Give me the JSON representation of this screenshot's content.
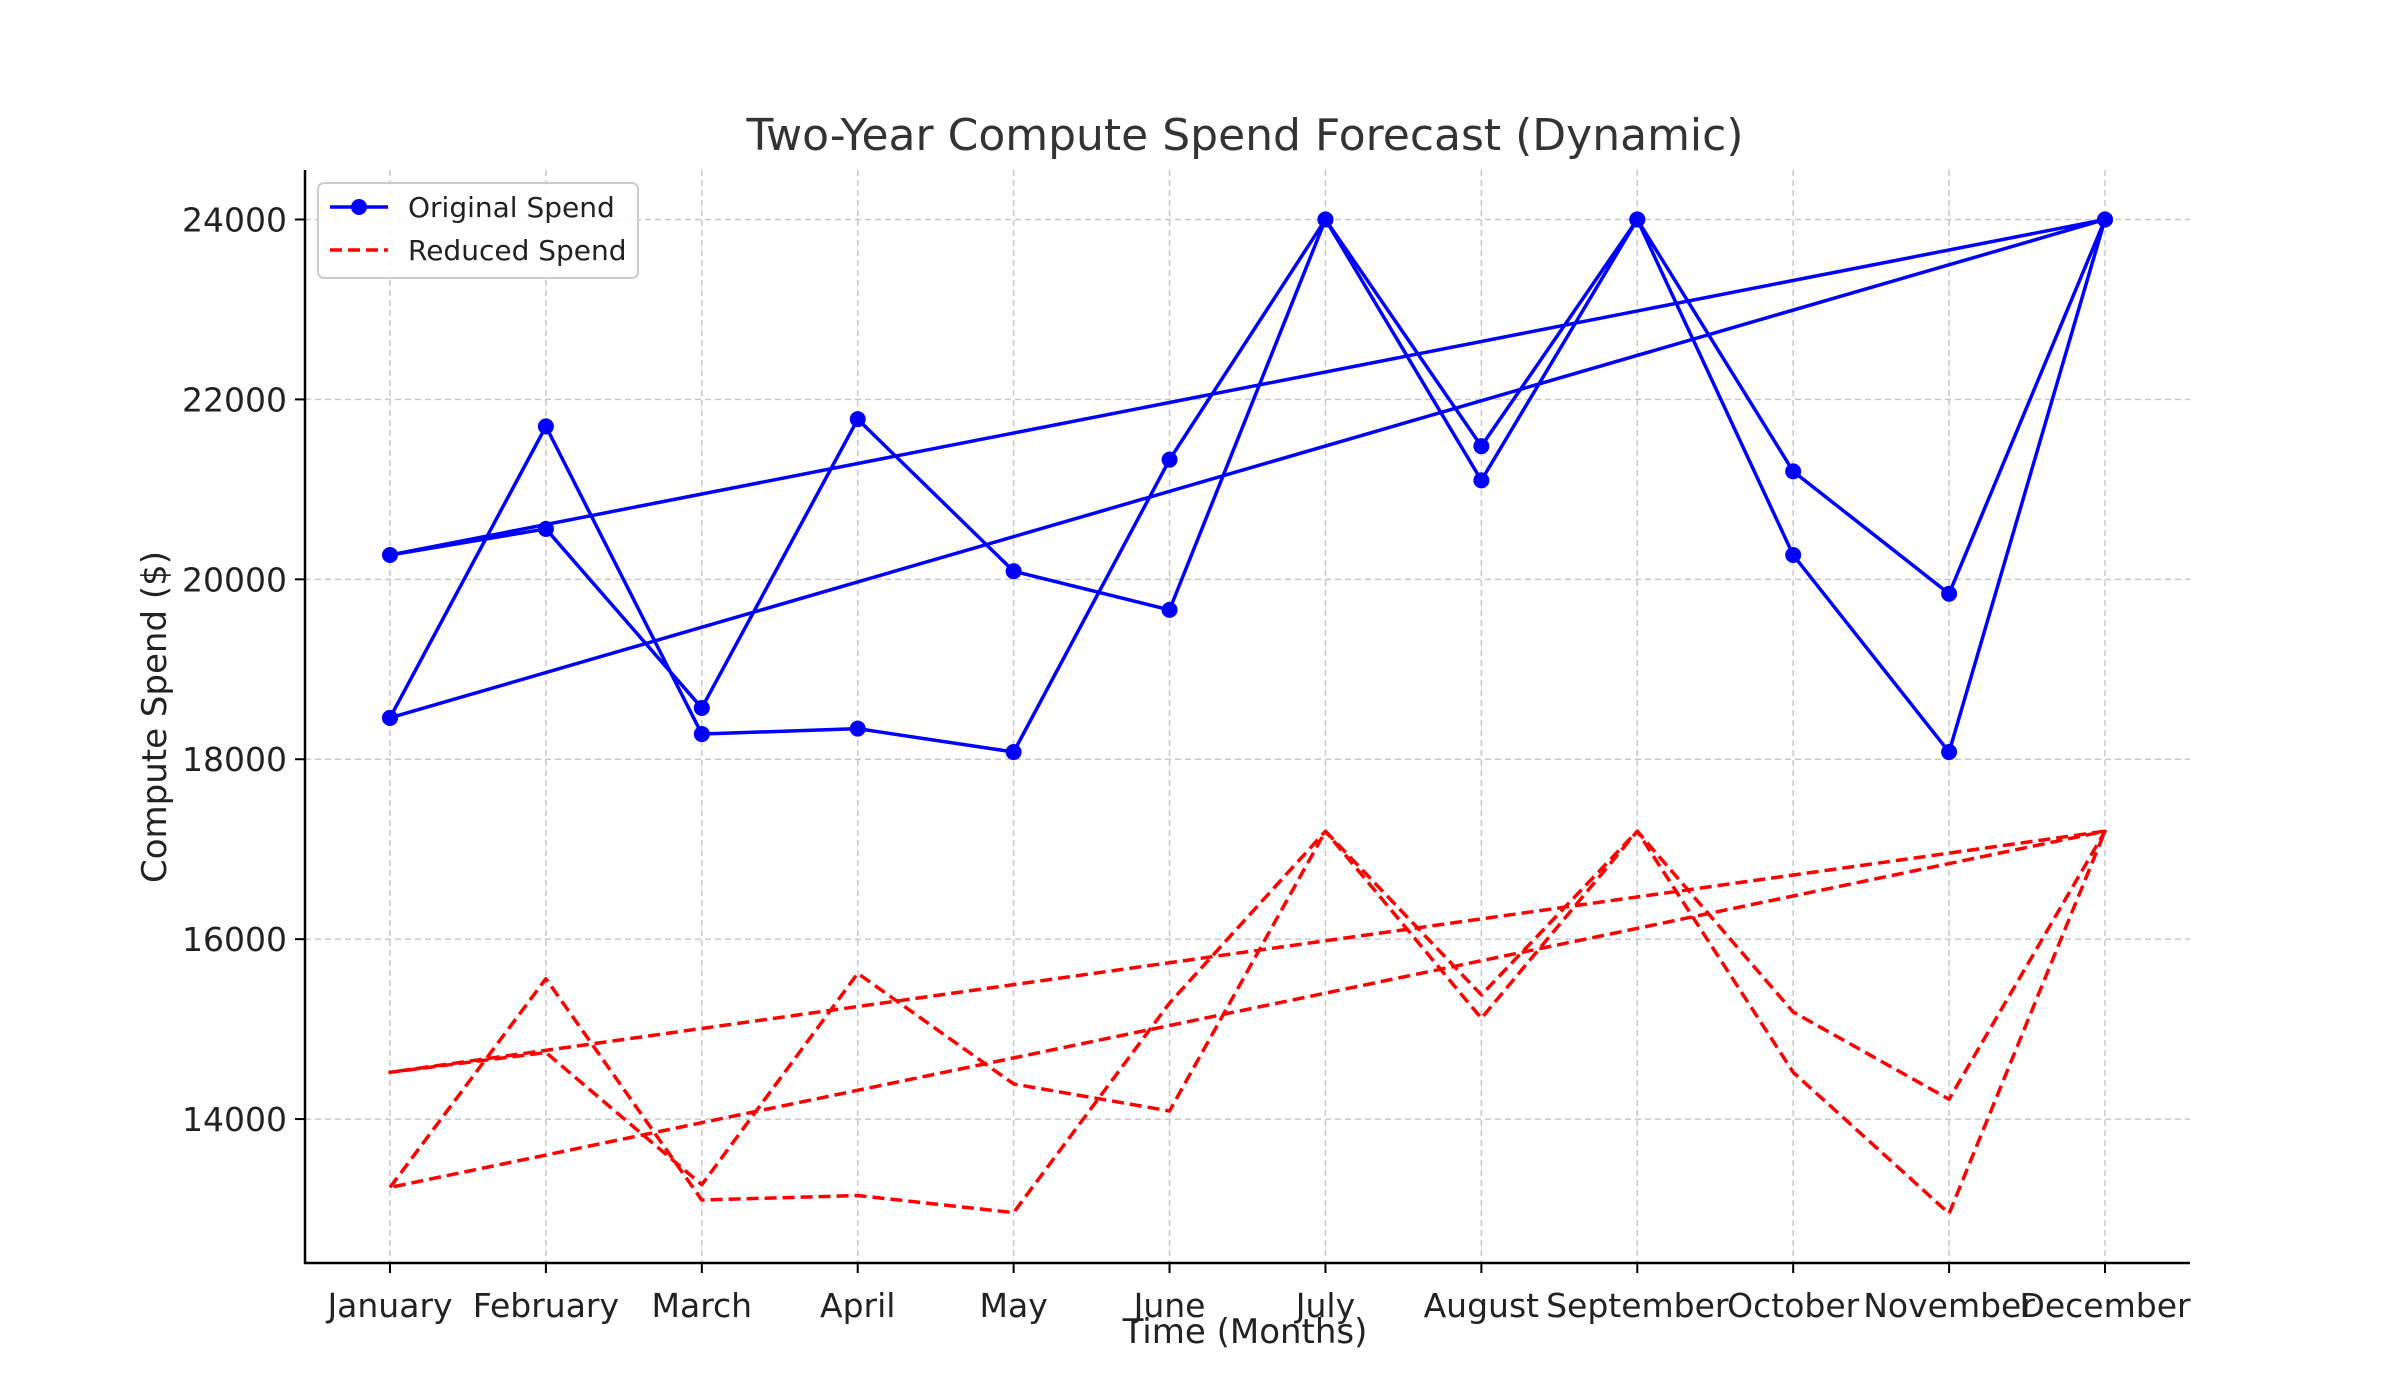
{
  "chart_data": {
    "type": "line",
    "title": "Two-Year Compute Spend Forecast (Dynamic)",
    "xlabel": "Time (Months)",
    "ylabel": "Compute Spend ($)",
    "categories": [
      "January",
      "February",
      "March",
      "April",
      "May",
      "June",
      "July",
      "August",
      "September",
      "October",
      "November",
      "December"
    ],
    "x": [
      0,
      1,
      2,
      3,
      4,
      5,
      6,
      7,
      8,
      9,
      10,
      11,
      0,
      1,
      2,
      3,
      4,
      5,
      6,
      7,
      8,
      9,
      10,
      11,
      0
    ],
    "ylim": [
      12400,
      24550
    ],
    "yticks": [
      14000,
      16000,
      18000,
      20000,
      22000,
      24000
    ],
    "grid": true,
    "legend_position": "top-left",
    "series": [
      {
        "name": "Original Spend",
        "color": "#0000ff",
        "line_style": "solid",
        "marker": "circle",
        "values": [
          18460,
          21700,
          18280,
          18340,
          18080,
          21330,
          24000,
          21100,
          24000,
          20270,
          18080,
          24000,
          20270,
          20560,
          18570,
          21780,
          20090,
          19660,
          24000,
          21480,
          24000,
          21200,
          19840,
          24000,
          18460
        ]
      },
      {
        "name": "Reduced Spend",
        "color": "#ff0000",
        "line_style": "dashed",
        "marker": "none",
        "values": [
          13240,
          15560,
          13100,
          13150,
          12960,
          15290,
          17200,
          15120,
          17200,
          14520,
          12950,
          17200,
          14520,
          14740,
          13270,
          15620,
          14390,
          14090,
          17200,
          15380,
          17200,
          15190,
          14220,
          17200,
          13240
        ]
      }
    ]
  }
}
